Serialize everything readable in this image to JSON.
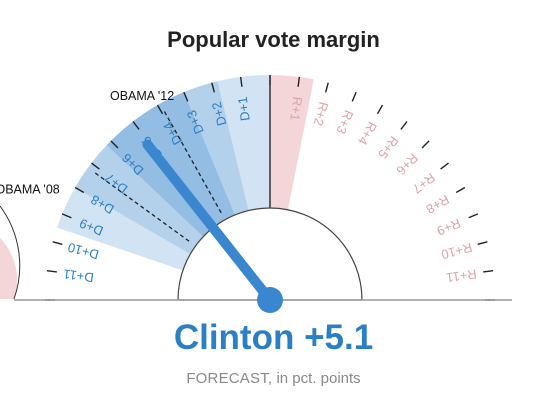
{
  "title": "Popular vote margin",
  "result": {
    "label": "Clinton +5.1",
    "subtitle_caps": "FORECAST,",
    "subtitle_rest": " in pct. points"
  },
  "colors": {
    "dem_text": "#2b7fc4",
    "dem_needle": "#3a87cf",
    "dem_band_outer": "#d2e4f3",
    "dem_band_mid": "#b4d1ec",
    "dem_band_inner": "#93bde3",
    "rep_text": "#dba3a8",
    "rep_band": "#f5d6d8",
    "tick": "#222222"
  },
  "chart_data": {
    "type": "gauge",
    "title": "Popular vote margin",
    "range": [
      -12,
      12
    ],
    "ticks_dem": [
      "D+1",
      "D+2",
      "D+3",
      "D+4",
      "D+5",
      "D+6",
      "D+7",
      "D+8",
      "D+9",
      "D+10",
      "D+11"
    ],
    "ticks_rep": [
      "R+1",
      "R+2",
      "R+3",
      "R+4",
      "R+5",
      "R+6",
      "R+7",
      "R+8",
      "R+9",
      "R+10",
      "R+11"
    ],
    "forecast_margin": 5.1,
    "bands": [
      {
        "from": 0,
        "to": 9.5,
        "tone": "outer"
      },
      {
        "from": 1.8,
        "to": 8,
        "tone": "mid"
      },
      {
        "from": 3,
        "to": 6.2,
        "tone": "inner"
      },
      {
        "from": -1.5,
        "to": 0,
        "tone": "rep"
      }
    ],
    "reference_lines": [
      {
        "label": "OBAMA '12",
        "margin": 3.9
      },
      {
        "label": "OBAMA '08",
        "margin": 7.2
      }
    ]
  }
}
